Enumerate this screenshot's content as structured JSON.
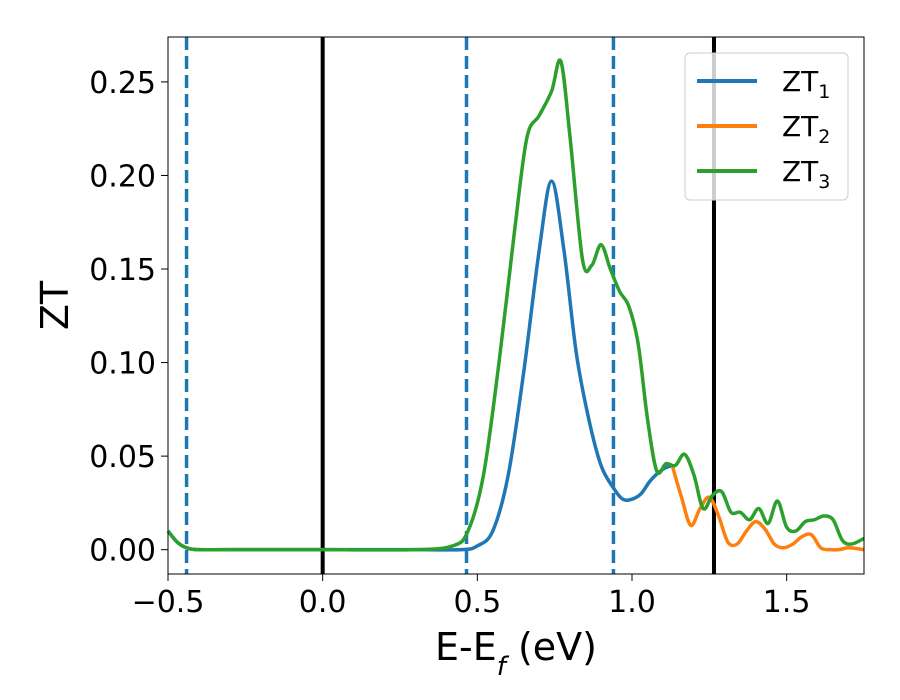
{
  "chart_data": {
    "type": "line",
    "xlabel": "E-E",
    "xlabel_sub": "f",
    "xlabel_unit": " (eV)",
    "ylabel": "ZT",
    "xlim": [
      -0.5,
      1.75
    ],
    "ylim": [
      -0.013,
      0.274
    ],
    "x_ticks": [
      -0.5,
      0.0,
      0.5,
      1.0,
      1.5
    ],
    "x_tick_labels": [
      "−0.5",
      "0.0",
      "0.5",
      "1.0",
      "1.5"
    ],
    "y_ticks": [
      0.0,
      0.05,
      0.1,
      0.15,
      0.2,
      0.25
    ],
    "y_tick_labels": [
      "0.00",
      "0.05",
      "0.10",
      "0.15",
      "0.20",
      "0.25"
    ],
    "grid": false,
    "legend_position": "top-right",
    "vlines": [
      {
        "x": -0.44,
        "style": "dashed",
        "color": "#1f77b4"
      },
      {
        "x": 0.0,
        "style": "solid",
        "color": "#000000"
      },
      {
        "x": 0.465,
        "style": "dashed",
        "color": "#1f77b4"
      },
      {
        "x": 0.94,
        "style": "dashed",
        "color": "#1f77b4"
      },
      {
        "x": 1.265,
        "style": "solid",
        "color": "#000000"
      }
    ],
    "series": [
      {
        "name": "ZT",
        "sub": "1",
        "color": "#1f77b4",
        "x": [
          -0.5,
          -0.47,
          -0.44,
          -0.4,
          -0.3,
          0.0,
          0.3,
          0.45,
          0.5,
          0.55,
          0.6,
          0.65,
          0.7,
          0.74,
          0.78,
          0.82,
          0.86,
          0.9,
          0.94,
          0.97,
          1.0,
          1.03,
          1.06,
          1.1,
          1.13
        ],
        "y": [
          0.01,
          0.004,
          0.001,
          0.0,
          0.0,
          0.0,
          0.0,
          0.0,
          0.002,
          0.01,
          0.04,
          0.095,
          0.16,
          0.197,
          0.16,
          0.105,
          0.07,
          0.045,
          0.033,
          0.027,
          0.027,
          0.03,
          0.037,
          0.043,
          0.045
        ]
      },
      {
        "name": "ZT",
        "sub": "2",
        "color": "#ff7f0e",
        "x": [
          1.13,
          1.16,
          1.19,
          1.22,
          1.25,
          1.28,
          1.31,
          1.34,
          1.37,
          1.4,
          1.43,
          1.46,
          1.49,
          1.52,
          1.55,
          1.58,
          1.61,
          1.64,
          1.67,
          1.7,
          1.75
        ],
        "y": [
          0.045,
          0.028,
          0.013,
          0.022,
          0.028,
          0.018,
          0.004,
          0.003,
          0.01,
          0.015,
          0.011,
          0.003,
          0.001,
          0.003,
          0.007,
          0.008,
          0.001,
          0.0,
          0.0,
          0.001,
          0.0
        ]
      },
      {
        "name": "ZT",
        "sub": "3",
        "color": "#2ca02c",
        "x": [
          -0.5,
          -0.47,
          -0.44,
          -0.4,
          -0.3,
          0.0,
          0.3,
          0.42,
          0.47,
          0.52,
          0.57,
          0.62,
          0.66,
          0.7,
          0.74,
          0.77,
          0.8,
          0.84,
          0.87,
          0.9,
          0.93,
          0.96,
          0.99,
          1.02,
          1.05,
          1.08,
          1.11,
          1.14,
          1.17,
          1.2,
          1.23,
          1.26,
          1.29,
          1.32,
          1.35,
          1.38,
          1.41,
          1.44,
          1.47,
          1.5,
          1.53,
          1.56,
          1.59,
          1.62,
          1.65,
          1.68,
          1.71,
          1.75
        ],
        "y": [
          0.01,
          0.004,
          0.001,
          0.0,
          0.0,
          0.0,
          0.0,
          0.002,
          0.01,
          0.04,
          0.1,
          0.17,
          0.22,
          0.232,
          0.245,
          0.261,
          0.22,
          0.155,
          0.152,
          0.163,
          0.15,
          0.138,
          0.13,
          0.11,
          0.07,
          0.042,
          0.046,
          0.045,
          0.051,
          0.04,
          0.022,
          0.029,
          0.031,
          0.02,
          0.02,
          0.016,
          0.022,
          0.014,
          0.026,
          0.012,
          0.01,
          0.015,
          0.016,
          0.018,
          0.016,
          0.005,
          0.003,
          0.006
        ]
      }
    ]
  }
}
